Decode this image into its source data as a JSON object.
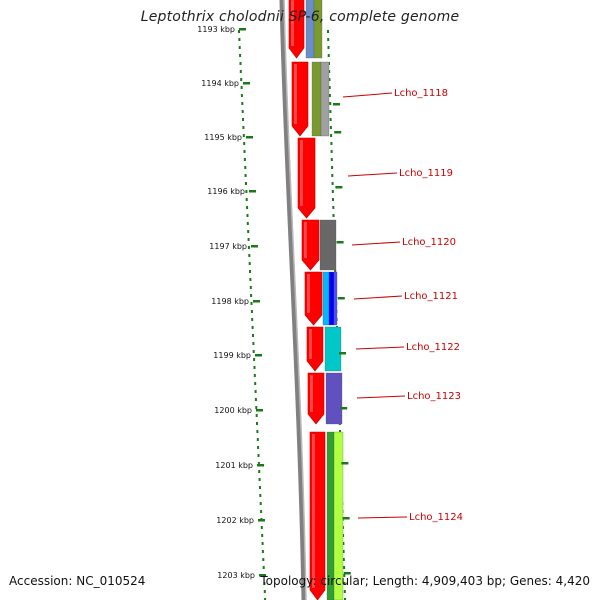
{
  "title": "Leptothrix cholodnii SP-6, complete genome",
  "footer": {
    "accession": "Accession: NC_010524",
    "summary": "Topology: circular; Length: 4,909,403 bp; Genes: 4,420"
  },
  "scale_labels": [
    "1193 kbp",
    "1194 kbp",
    "1195 kbp",
    "1196 kbp",
    "1197 kbp",
    "1198 kbp",
    "1199 kbp",
    "1200 kbp",
    "1201 kbp",
    "1202 kbp",
    "1203 kbp"
  ],
  "gene_labels": [
    "Lcho_1118",
    "Lcho_1119",
    "Lcho_1120",
    "Lcho_1121",
    "Lcho_1122",
    "Lcho_1123",
    "Lcho_1124"
  ],
  "colors": {
    "cds_track": "#ff0000",
    "backbone": "#808080",
    "tick": "#1a7a1a",
    "label_line": "#cc0000",
    "cog": [
      "#6a8fc8",
      "#7a9a30",
      "#a0a0a0",
      "#686868",
      "#0000ff",
      "#00c8c8",
      "#6050c0",
      "#30a030",
      "#b0ff40"
    ]
  }
}
